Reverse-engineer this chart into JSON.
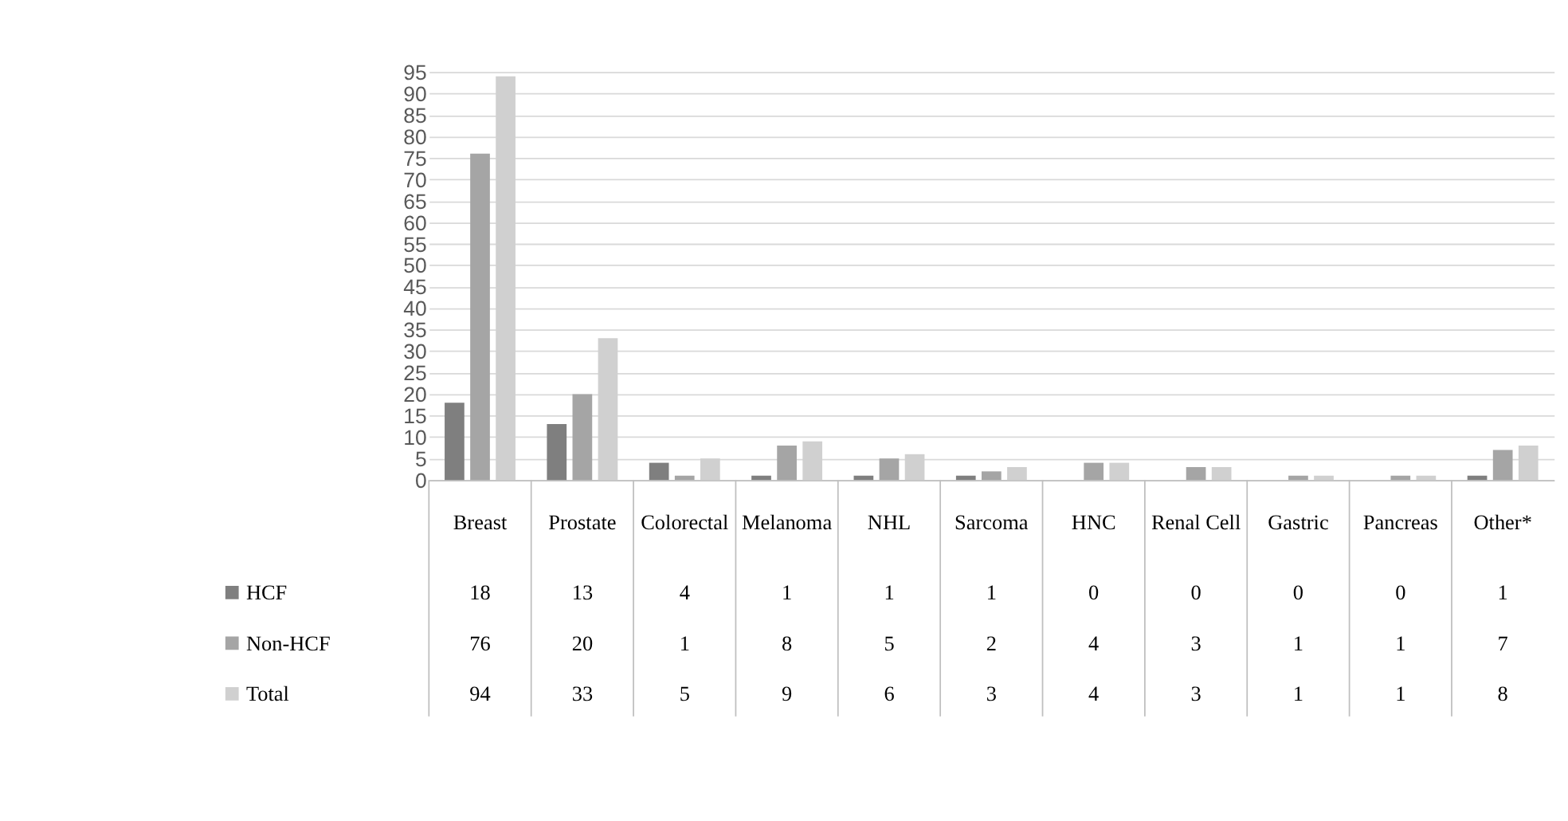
{
  "chart_data": {
    "type": "bar",
    "categories": [
      "Breast",
      "Prostate",
      "Colorectal",
      "Melanoma",
      "NHL",
      "Sarcoma",
      "HNC",
      "Renal Cell",
      "Gastric",
      "Pancreas",
      "Other*"
    ],
    "series": [
      {
        "name": "HCF",
        "color": "#7f7f7f",
        "values": [
          18,
          13,
          4,
          1,
          1,
          1,
          0,
          0,
          0,
          0,
          1
        ]
      },
      {
        "name": "Non-HCF",
        "color": "#a5a5a5",
        "values": [
          76,
          20,
          1,
          8,
          5,
          2,
          4,
          3,
          1,
          1,
          7
        ]
      },
      {
        "name": "Total",
        "color": "#d0d0d0",
        "values": [
          94,
          33,
          5,
          9,
          6,
          3,
          4,
          3,
          1,
          1,
          8
        ]
      }
    ],
    "ylim": [
      0,
      95
    ],
    "yticks": [
      0,
      5,
      10,
      15,
      20,
      25,
      30,
      35,
      40,
      45,
      50,
      55,
      60,
      65,
      70,
      75,
      80,
      85,
      90,
      95
    ],
    "grid": "y",
    "data_labels": true,
    "legend": "bottom left"
  }
}
